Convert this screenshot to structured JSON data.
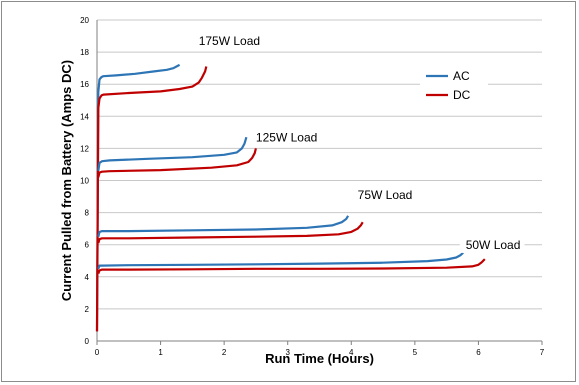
{
  "chart_data": {
    "type": "line",
    "xlabel": "Run Time (Hours)",
    "ylabel": "Current Pulled from Battery (Amps DC)",
    "xlim": [
      0,
      7
    ],
    "ylim": [
      0,
      20
    ],
    "x_ticks": [
      "0",
      "1",
      "2",
      "3",
      "4",
      "5",
      "6",
      "7"
    ],
    "y_ticks": [
      "0",
      "2",
      "4",
      "6",
      "8",
      "10",
      "12",
      "14",
      "16",
      "18",
      "20"
    ],
    "grid": "horizontal",
    "legend_position": "right",
    "legend": [
      {
        "name": "AC",
        "color": "#2e75b6"
      },
      {
        "name": "DC",
        "color": "#c00000"
      }
    ],
    "annotations": [
      {
        "text": "175W Load",
        "x": 1.6,
        "y": 18.5
      },
      {
        "text": "125W Load",
        "x": 2.5,
        "y": 12.5
      },
      {
        "text": "75W Load",
        "x": 4.1,
        "y": 8.9
      },
      {
        "text": "50W Load",
        "x": 5.8,
        "y": 5.8
      }
    ],
    "series": [
      {
        "name": "AC",
        "load": "175W Load",
        "color": "#2e75b6",
        "x": [
          0,
          0.02,
          0.04,
          0.07,
          0.1,
          0.3,
          0.6,
          0.9,
          1.1,
          1.2,
          1.25,
          1.3
        ],
        "y": [
          0.6,
          15.5,
          16.3,
          16.45,
          16.5,
          16.55,
          16.65,
          16.8,
          16.9,
          17.0,
          17.1,
          17.2
        ]
      },
      {
        "name": "DC",
        "load": "175W Load",
        "color": "#c00000",
        "x": [
          0,
          0.02,
          0.04,
          0.07,
          0.1,
          0.5,
          1.0,
          1.3,
          1.5,
          1.6,
          1.65,
          1.7,
          1.72
        ],
        "y": [
          0.6,
          14.5,
          15.1,
          15.3,
          15.35,
          15.45,
          15.55,
          15.7,
          15.85,
          16.1,
          16.4,
          16.8,
          17.1
        ]
      },
      {
        "name": "AC",
        "load": "125W Load",
        "color": "#2e75b6",
        "x": [
          0.02,
          0.04,
          0.08,
          0.2,
          0.8,
          1.5,
          2.0,
          2.2,
          2.28,
          2.32,
          2.35
        ],
        "y": [
          10.6,
          11.1,
          11.2,
          11.25,
          11.35,
          11.45,
          11.6,
          11.75,
          12.0,
          12.3,
          12.7
        ]
      },
      {
        "name": "DC",
        "load": "125W Load",
        "color": "#c00000",
        "x": [
          0.02,
          0.04,
          0.08,
          0.2,
          1.0,
          1.8,
          2.2,
          2.38,
          2.44,
          2.48,
          2.5
        ],
        "y": [
          10.2,
          10.5,
          10.55,
          10.58,
          10.65,
          10.8,
          10.95,
          11.15,
          11.4,
          11.7,
          12.0
        ]
      },
      {
        "name": "AC",
        "load": "75W Load",
        "color": "#2e75b6",
        "x": [
          0.02,
          0.04,
          0.08,
          0.5,
          1.5,
          2.5,
          3.3,
          3.7,
          3.85,
          3.92,
          3.95
        ],
        "y": [
          6.5,
          6.8,
          6.85,
          6.85,
          6.9,
          6.95,
          7.05,
          7.2,
          7.4,
          7.6,
          7.8
        ]
      },
      {
        "name": "DC",
        "load": "75W Load",
        "color": "#c00000",
        "x": [
          0.02,
          0.04,
          0.08,
          0.5,
          1.5,
          2.5,
          3.3,
          3.8,
          4.0,
          4.1,
          4.15,
          4.18
        ],
        "y": [
          6.1,
          6.35,
          6.4,
          6.4,
          6.45,
          6.5,
          6.55,
          6.65,
          6.8,
          7.0,
          7.2,
          7.4
        ]
      },
      {
        "name": "AC",
        "load": "50W Load",
        "color": "#2e75b6",
        "x": [
          0.02,
          0.04,
          0.08,
          0.5,
          1.5,
          2.5,
          3.5,
          4.5,
          5.2,
          5.5,
          5.65,
          5.72,
          5.76
        ],
        "y": [
          4.5,
          4.7,
          4.7,
          4.72,
          4.75,
          4.78,
          4.82,
          4.88,
          4.98,
          5.08,
          5.2,
          5.35,
          5.5
        ]
      },
      {
        "name": "DC",
        "load": "50W Load",
        "color": "#c00000",
        "x": [
          0.02,
          0.04,
          0.08,
          0.5,
          1.5,
          2.5,
          3.5,
          4.5,
          5.5,
          5.9,
          6.0,
          6.05,
          6.1
        ],
        "y": [
          4.2,
          4.4,
          4.45,
          4.45,
          4.47,
          4.5,
          4.5,
          4.52,
          4.57,
          4.65,
          4.75,
          4.9,
          5.1
        ]
      }
    ]
  }
}
